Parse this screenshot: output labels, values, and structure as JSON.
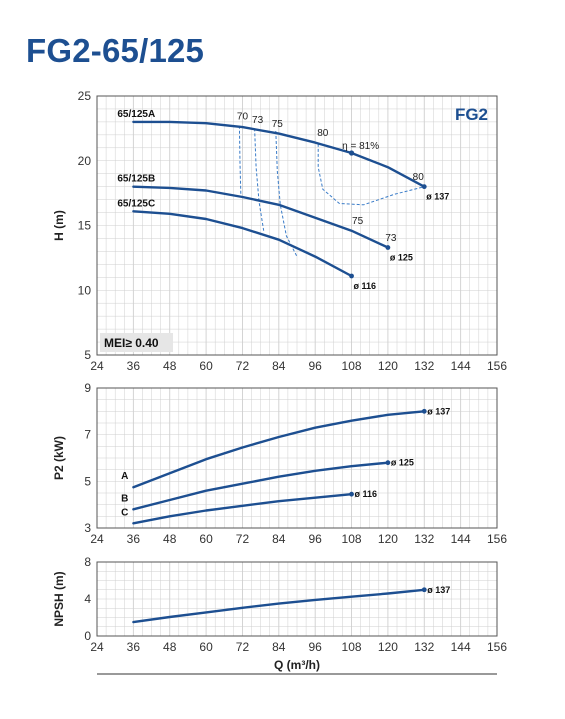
{
  "title": "FG2-65/125",
  "colors": {
    "curve": "#1d4f91",
    "efficiency": "#3a7cc8",
    "grid": "#cfcfcf",
    "title": "#1d4f91",
    "badge": "#e6e6e6"
  },
  "chart_data": [
    {
      "id": "head",
      "type": "line",
      "ylabel": "H (m)",
      "xlim": [
        24,
        156
      ],
      "ylim": [
        5,
        25
      ],
      "xticks": [
        "24",
        "36",
        "48",
        "60",
        "72",
        "84",
        "96",
        "108",
        "120",
        "132",
        "144",
        "156"
      ],
      "yticks": [
        "5",
        "10",
        "15",
        "20",
        "25"
      ],
      "family_label": "FG2",
      "badge": "MEI≥ 0.40",
      "grid": true,
      "series": [
        {
          "name": "65/125A",
          "diameter": "ø 137",
          "x": [
            36,
            48,
            60,
            72,
            84,
            96,
            108,
            120,
            132
          ],
          "y": [
            23.0,
            23.0,
            22.9,
            22.6,
            22.1,
            21.4,
            20.6,
            19.5,
            18.0
          ]
        },
        {
          "name": "65/125B",
          "diameter": "ø 125",
          "x": [
            36,
            48,
            60,
            72,
            84,
            96,
            108,
            120
          ],
          "y": [
            18.0,
            17.9,
            17.7,
            17.2,
            16.6,
            15.6,
            14.6,
            13.3
          ]
        },
        {
          "name": "65/125C",
          "diameter": "ø 116",
          "x": [
            36,
            48,
            60,
            72,
            84,
            96,
            108
          ],
          "y": [
            16.1,
            15.9,
            15.5,
            14.8,
            13.9,
            12.6,
            11.1
          ]
        }
      ],
      "efficiency_lines": [
        {
          "label": "70",
          "points": [
            [
              71,
              22.7
            ],
            [
              71.2,
              19.8
            ],
            [
              71.5,
              17.2
            ]
          ]
        },
        {
          "label": "73",
          "points": [
            [
              76,
              22.5
            ],
            [
              76.5,
              19.5
            ],
            [
              77.5,
              16.8
            ],
            [
              79,
              14.6
            ]
          ]
        },
        {
          "label": "75",
          "points": [
            [
              83,
              22.3
            ],
            [
              83.5,
              19.2
            ],
            [
              84.5,
              16.6
            ],
            [
              86.5,
              14.2
            ],
            [
              90,
              12.6
            ]
          ]
        },
        {
          "label": "80",
          "points": [
            [
              97,
              21.3
            ],
            [
              97,
              19.5
            ],
            [
              98.5,
              17.8
            ],
            [
              104,
              16.7
            ],
            [
              112,
              16.6
            ],
            [
              122,
              17.4
            ],
            [
              132,
              18.0
            ]
          ]
        }
      ],
      "efficiency_labels": [
        {
          "text": "70",
          "x": 72,
          "y": 23.2
        },
        {
          "text": "73",
          "x": 77,
          "y": 22.9
        },
        {
          "text": "75",
          "x": 83.5,
          "y": 22.6
        },
        {
          "text": "80",
          "x": 98.5,
          "y": 21.9
        },
        {
          "text": "η = 81%",
          "x": 111,
          "y": 20.9
        },
        {
          "text": "80",
          "x": 130,
          "y": 18.5
        },
        {
          "text": "75",
          "x": 110,
          "y": 15.1
        },
        {
          "text": "73",
          "x": 121,
          "y": 13.8
        }
      ],
      "best_efficiency_point": {
        "x": 108,
        "y": 20.6
      }
    },
    {
      "id": "power",
      "type": "line",
      "ylabel": "P2 (kW)",
      "xlim": [
        24,
        156
      ],
      "ylim": [
        3,
        9
      ],
      "xticks": [
        "24",
        "36",
        "48",
        "60",
        "72",
        "84",
        "96",
        "108",
        "120",
        "132",
        "144",
        "156"
      ],
      "yticks": [
        "3",
        "5",
        "7",
        "9"
      ],
      "grid": true,
      "series": [
        {
          "name": "A",
          "diameter": "ø 137",
          "x": [
            36,
            48,
            60,
            72,
            84,
            96,
            108,
            120,
            132
          ],
          "y": [
            4.75,
            5.35,
            5.95,
            6.45,
            6.9,
            7.3,
            7.6,
            7.85,
            8.0
          ]
        },
        {
          "name": "B",
          "diameter": "ø 125",
          "x": [
            36,
            48,
            60,
            72,
            84,
            96,
            108,
            120
          ],
          "y": [
            3.8,
            4.2,
            4.6,
            4.9,
            5.2,
            5.45,
            5.65,
            5.8
          ]
        },
        {
          "name": "C",
          "diameter": "ø 116",
          "x": [
            36,
            48,
            60,
            72,
            84,
            96,
            108
          ],
          "y": [
            3.2,
            3.5,
            3.75,
            3.95,
            4.15,
            4.3,
            4.45
          ]
        }
      ]
    },
    {
      "id": "npsh",
      "type": "line",
      "ylabel": "NPSH (m)",
      "xlabel": "Q (m³/h)",
      "xlim": [
        24,
        156
      ],
      "ylim": [
        0,
        8
      ],
      "xticks": [
        "24",
        "36",
        "48",
        "60",
        "72",
        "84",
        "96",
        "108",
        "120",
        "132",
        "144",
        "156"
      ],
      "yticks": [
        "0",
        "4",
        "8"
      ],
      "grid": true,
      "series": [
        {
          "name": "",
          "diameter": "ø 137",
          "x": [
            36,
            48,
            60,
            72,
            84,
            96,
            108,
            120,
            132
          ],
          "y": [
            1.5,
            2.05,
            2.55,
            3.05,
            3.5,
            3.9,
            4.25,
            4.6,
            5.0
          ]
        }
      ]
    }
  ]
}
